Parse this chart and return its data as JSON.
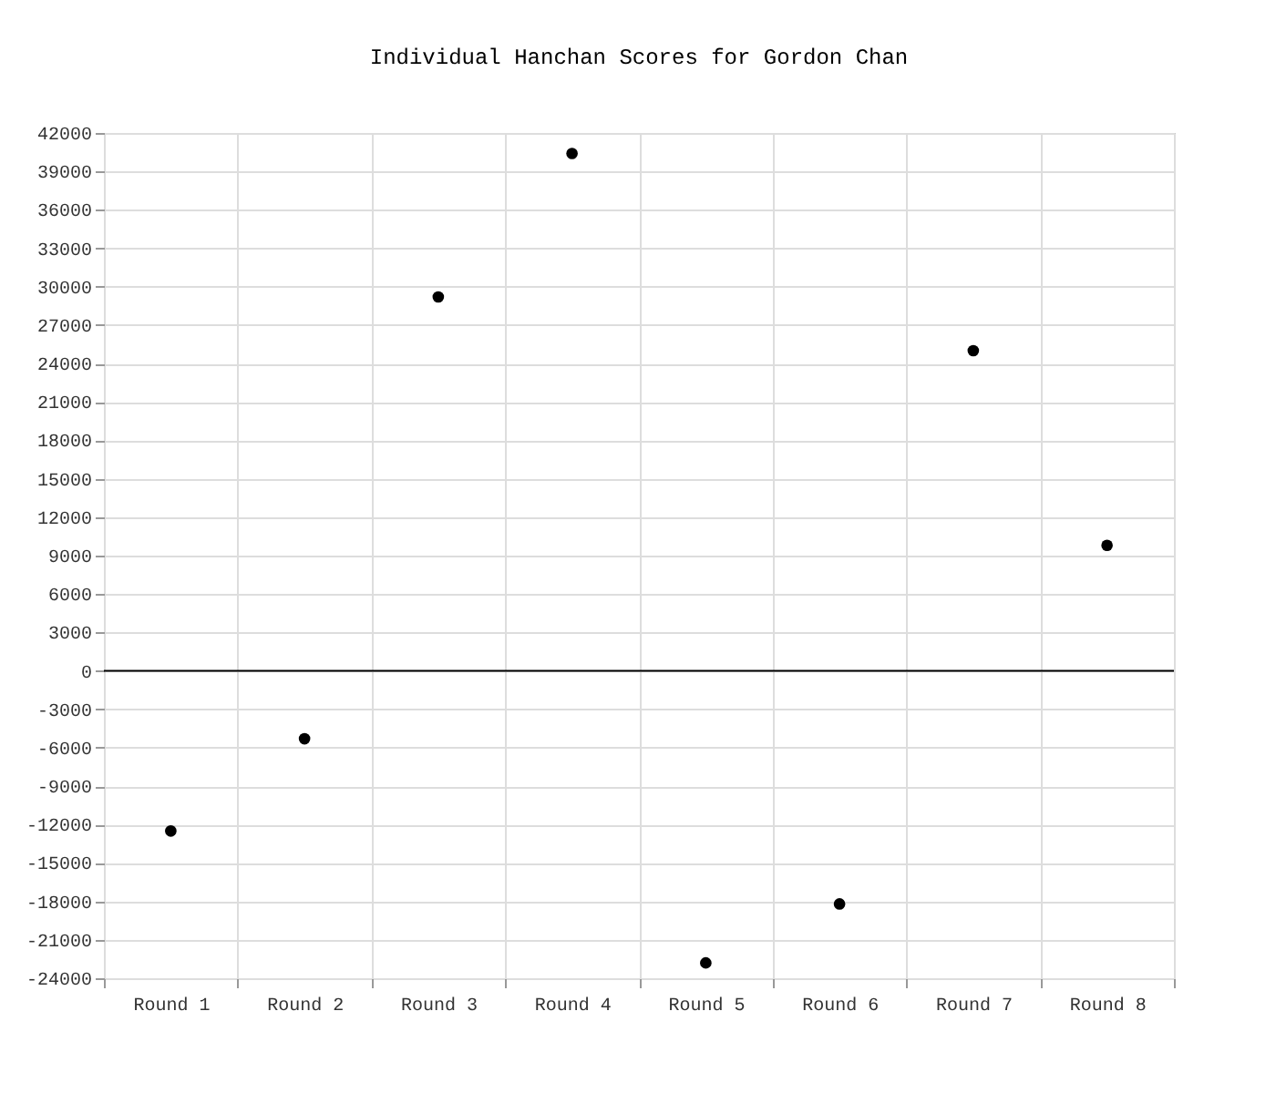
{
  "chart_data": {
    "type": "scatter",
    "title": "Individual Hanchan Scores for Gordon Chan",
    "categories": [
      "Round 1",
      "Round 2",
      "Round 3",
      "Round 4",
      "Round 5",
      "Round 6",
      "Round 7",
      "Round 8"
    ],
    "values": [
      -12500,
      -5300,
      29200,
      40400,
      -22800,
      -18200,
      25000,
      9800
    ],
    "color": "#000000",
    "marker": "circle",
    "ylim": [
      -24000,
      42000
    ],
    "yticks": [
      -24000,
      -21000,
      -18000,
      -15000,
      -12000,
      -9000,
      -6000,
      -3000,
      0,
      3000,
      6000,
      9000,
      12000,
      15000,
      18000,
      21000,
      24000,
      27000,
      30000,
      33000,
      36000,
      39000,
      42000
    ],
    "ref_lines": [
      {
        "axis": "y",
        "value": 0,
        "color": "#000000"
      }
    ],
    "grid": true
  }
}
